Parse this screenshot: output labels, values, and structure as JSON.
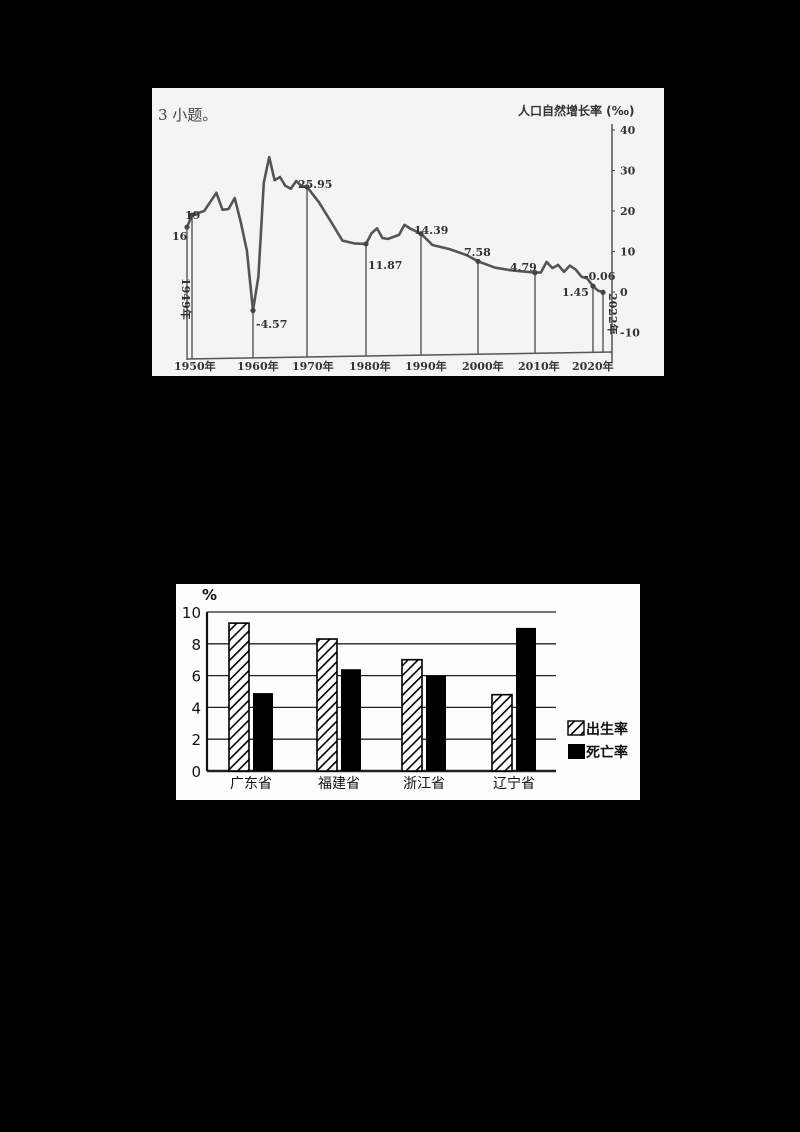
{
  "line_panel": {
    "header_fragment": "3 小题。",
    "y_axis_title": "人口自然增长率 (‰)",
    "start_label": "1949年",
    "end_label": "2022年"
  },
  "bar_panel": {
    "y_unit": "%",
    "legend": [
      "出生率",
      "死亡率"
    ]
  },
  "chart_data": [
    {
      "type": "line",
      "title": "",
      "ylabel": "人口自然增长率 (‰)",
      "xlabel": "",
      "ylim": [
        -10,
        40
      ],
      "yticks": [
        40,
        30,
        20,
        10,
        0,
        -10
      ],
      "xticks": [
        "1950年",
        "1960年",
        "1970年",
        "1980年",
        "1990年",
        "2000年",
        "2010年",
        "2020年"
      ],
      "grid": false,
      "series": [
        {
          "name": "人口自然增长率",
          "x": [
            1949,
            1950,
            1952,
            1954,
            1955,
            1956,
            1957,
            1958,
            1959,
            1960,
            1961,
            1962,
            1963,
            1964,
            1965,
            1966,
            1967,
            1968,
            1969,
            1970,
            1972,
            1974,
            1976,
            1978,
            1980,
            1981,
            1982,
            1983,
            1984,
            1986,
            1987,
            1988,
            1990,
            1992,
            1995,
            1998,
            2000,
            2003,
            2006,
            2010,
            2011,
            2012,
            2013,
            2014,
            2015,
            2016,
            2017,
            2018,
            2019,
            2020,
            2021,
            2022
          ],
          "values": [
            16,
            19,
            20,
            24.5,
            20.3,
            20.5,
            23.2,
            17.2,
            10.2,
            -4.57,
            3.8,
            27,
            33.3,
            27.6,
            28.4,
            26.2,
            25.5,
            27.4,
            26.1,
            25.95,
            22.2,
            17.5,
            12.7,
            12,
            11.87,
            14.5,
            15.7,
            13.3,
            13.1,
            14.1,
            16.6,
            15.7,
            14.39,
            11.6,
            10.6,
            9.1,
            7.58,
            6.0,
            5.3,
            4.79,
            4.79,
            7.43,
            5.9,
            6.7,
            4.96,
            6.53,
            5.58,
            3.81,
            3.34,
            1.45,
            0.34,
            -0.06
          ]
        }
      ],
      "annotations": [
        {
          "x": 1949,
          "label": "16"
        },
        {
          "x": 1950,
          "label": "19"
        },
        {
          "x": 1960,
          "label": "-4.57"
        },
        {
          "x": 1970,
          "label": "25.95"
        },
        {
          "x": 1980,
          "label": "11.87"
        },
        {
          "x": 1990,
          "label": "14.39"
        },
        {
          "x": 2000,
          "label": "7.58"
        },
        {
          "x": 2010,
          "label": "4.79"
        },
        {
          "x": 2020,
          "label": "1.45"
        },
        {
          "x": 2022,
          "label": "-0.06"
        },
        {
          "x": 1949,
          "label": "1949年"
        },
        {
          "x": 2022,
          "label": "2022年"
        }
      ]
    },
    {
      "type": "bar",
      "title": "",
      "ylabel": "%",
      "xlabel": "",
      "ylim": [
        0,
        10
      ],
      "yticks": [
        0,
        2,
        4,
        6,
        8,
        10
      ],
      "grid": true,
      "legend_position": "right",
      "categories": [
        "广东省",
        "福建省",
        "浙江省",
        "辽宁省"
      ],
      "series": [
        {
          "name": "出生率",
          "pattern": "diagonal-hatch",
          "values": [
            9.3,
            8.3,
            7.0,
            4.8
          ]
        },
        {
          "name": "死亡率",
          "pattern": "solid-black",
          "values": [
            4.9,
            6.4,
            6.0,
            9.0
          ]
        }
      ]
    }
  ]
}
